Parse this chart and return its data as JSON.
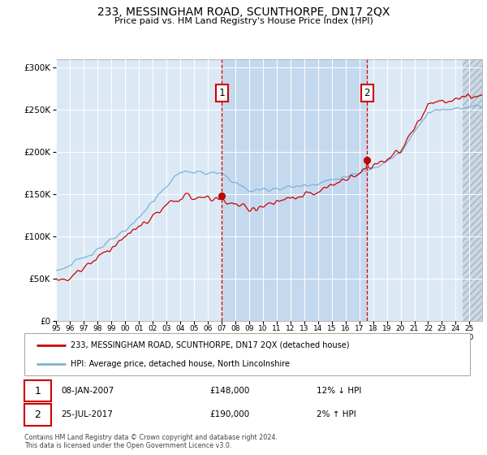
{
  "title": "233, MESSINGHAM ROAD, SCUNTHORPE, DN17 2QX",
  "subtitle": "Price paid vs. HM Land Registry's House Price Index (HPI)",
  "background_color": "white",
  "plot_bg_color": "#dce9f5",
  "highlight_bg_color": "#c5d9ee",
  "hpi_color": "#7ab3d4",
  "price_color": "#cc0000",
  "legend_line1": "233, MESSINGHAM ROAD, SCUNTHORPE, DN17 2QX (detached house)",
  "legend_line2": "HPI: Average price, detached house, North Lincolnshire",
  "footer": "Contains HM Land Registry data © Crown copyright and database right 2024.\nThis data is licensed under the Open Government Licence v3.0.",
  "ylim": [
    0,
    310000
  ],
  "yticks": [
    0,
    50000,
    100000,
    150000,
    200000,
    250000,
    300000
  ],
  "start_year": 1995,
  "end_year": 2025,
  "marker1_year": 2007.04,
  "marker2_year": 2017.56,
  "marker1_price": 148000,
  "marker2_price": 190000,
  "hpi_at_marker2": 188000
}
